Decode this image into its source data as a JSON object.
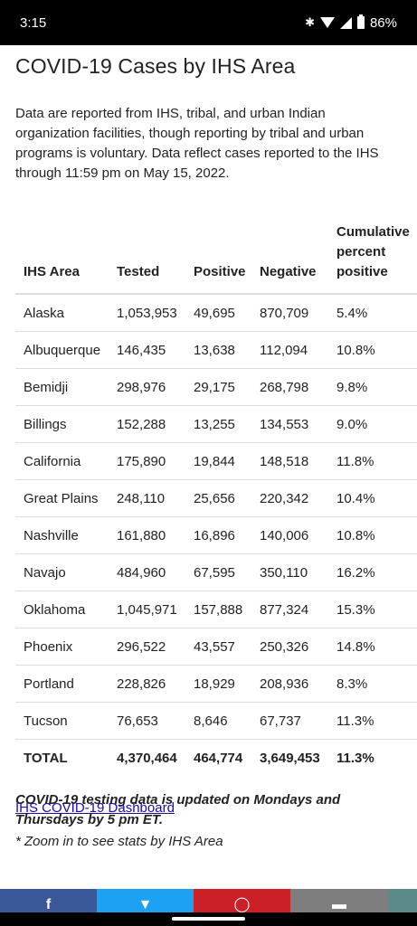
{
  "status_bar": {
    "time": "3:15",
    "battery": "86%",
    "icons": [
      "bluetooth-icon",
      "wifi-icon",
      "signal-icon",
      "battery-icon"
    ]
  },
  "page": {
    "title": "COVID-19 Cases by IHS Area",
    "intro": "Data are reported from IHS, tribal, and urban Indian organization facilities, though reporting by tribal and urban programs is voluntary. Data reflect cases reported to the IHS through 11:59 pm on May 15, 2022."
  },
  "table": {
    "headers": [
      "IHS Area",
      "Tested",
      "Positive",
      "Negative",
      "Cumulative percent positive"
    ],
    "rows": [
      [
        "Alaska",
        "1,053,953",
        "49,695",
        "870,709",
        "5.4%"
      ],
      [
        "Albuquerque",
        "146,435",
        "13,638",
        "112,094",
        "10.8%"
      ],
      [
        "Bemidji",
        "298,976",
        "29,175",
        "268,798",
        "9.8%"
      ],
      [
        "Billings",
        "152,288",
        "13,255",
        "134,553",
        "9.0%"
      ],
      [
        "California",
        "175,890",
        "19,844",
        "148,518",
        "11.8%"
      ],
      [
        "Great Plains",
        "248,110",
        "25,656",
        "220,342",
        "10.4%"
      ],
      [
        "Nashville",
        "161,880",
        "16,896",
        "140,006",
        "10.8%"
      ],
      [
        "Navajo",
        "484,960",
        "67,595",
        "350,110",
        "16.2%"
      ],
      [
        "Oklahoma",
        "1,045,971",
        "157,888",
        "877,324",
        "15.3%"
      ],
      [
        "Phoenix",
        "296,522",
        "43,557",
        "250,326",
        "14.8%"
      ],
      [
        "Portland",
        "228,826",
        "18,929",
        "208,936",
        "8.3%"
      ],
      [
        "Tucson",
        "76,653",
        "8,646",
        "67,737",
        "11.3%"
      ]
    ],
    "total": [
      "TOTAL",
      "4,370,464",
      "464,774",
      "3,649,453",
      "11.3%"
    ]
  },
  "note": "COVID-19 testing data is updated on Mondays and Thursdays by 5 pm ET.",
  "dashboard_link": "IHS COVID-19 Dashboard",
  "zoom_note": "* Zoom in to see stats by IHS Area",
  "share_bar": {
    "colors": {
      "facebook": "#3b5998",
      "twitter": "#1da1f2",
      "pinterest": "#cb2027",
      "email": "#7d7d7d",
      "more": "#5a8a8a"
    },
    "icons": [
      "facebook-icon",
      "twitter-icon",
      "pinterest-icon",
      "email-icon",
      "more-icon"
    ]
  }
}
